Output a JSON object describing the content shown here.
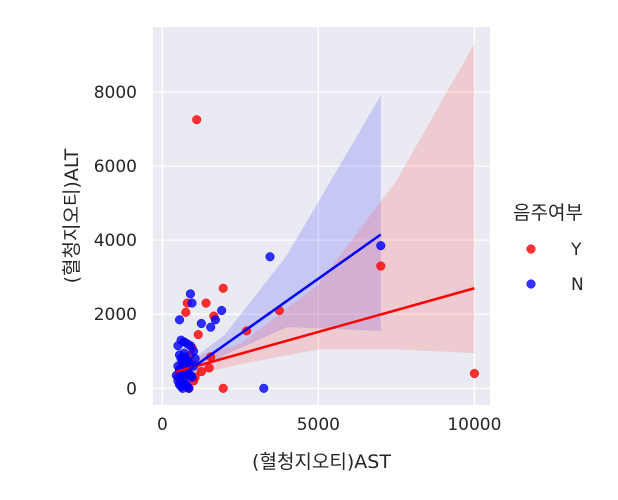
{
  "chart_data": {
    "type": "scatter",
    "xlabel": "(혈청지오티)AST",
    "ylabel": "(혈청지오티)ALT",
    "xlim": [
      -300,
      10500
    ],
    "ylim": [
      -450,
      9750
    ],
    "x_ticks": [
      0,
      5000,
      10000
    ],
    "x_tick_labels": [
      "0",
      "5000",
      "10000"
    ],
    "y_ticks": [
      0,
      2000,
      4000,
      6000,
      8000
    ],
    "y_tick_labels": [
      "0",
      "2000",
      "4000",
      "6000",
      "8000"
    ],
    "grid": true,
    "legend": {
      "title": "음주여부",
      "placement": "right"
    },
    "series": [
      {
        "name": "Y",
        "color": "#ff0000",
        "points": [
          [
            1100,
            7250
          ],
          [
            10000,
            400
          ],
          [
            7000,
            3300
          ],
          [
            3750,
            2100
          ],
          [
            2700,
            1550
          ],
          [
            1950,
            2700
          ],
          [
            1950,
            0
          ],
          [
            1650,
            1950
          ],
          [
            1400,
            2300
          ],
          [
            800,
            2300
          ],
          [
            750,
            2050
          ],
          [
            1150,
            1450
          ],
          [
            1550,
            850
          ],
          [
            1500,
            550
          ],
          [
            1250,
            450
          ],
          [
            1050,
            300
          ],
          [
            900,
            900
          ],
          [
            700,
            1250
          ],
          [
            650,
            650
          ],
          [
            600,
            150
          ],
          [
            850,
            0
          ],
          [
            500,
            300
          ],
          [
            550,
            500
          ],
          [
            950,
            1100
          ],
          [
            1000,
            200
          ]
        ],
        "regression": {
          "x": [
            450,
            10000
          ],
          "y": [
            450,
            2700
          ],
          "ci_upper": [
            [
              450,
              700
            ],
            [
              2500,
              1200
            ],
            [
              5000,
              2800
            ],
            [
              7500,
              5600
            ],
            [
              10000,
              9300
            ]
          ],
          "ci_lower": [
            [
              450,
              250
            ],
            [
              2500,
              650
            ],
            [
              5000,
              1050
            ],
            [
              7500,
              1050
            ],
            [
              10000,
              950
            ]
          ]
        }
      },
      {
        "name": "N",
        "color": "#0000ff",
        "points": [
          [
            7000,
            3850
          ],
          [
            3450,
            3550
          ],
          [
            3250,
            0
          ],
          [
            1900,
            2100
          ],
          [
            1700,
            1850
          ],
          [
            1550,
            1650
          ],
          [
            1250,
            1750
          ],
          [
            900,
            2550
          ],
          [
            950,
            2300
          ],
          [
            550,
            1850
          ],
          [
            600,
            1300
          ],
          [
            700,
            1250
          ],
          [
            800,
            1200
          ],
          [
            900,
            1150
          ],
          [
            1000,
            1000
          ],
          [
            500,
            1150
          ],
          [
            550,
            900
          ],
          [
            600,
            800
          ],
          [
            650,
            700
          ],
          [
            700,
            600
          ],
          [
            750,
            500
          ],
          [
            800,
            450
          ],
          [
            850,
            400
          ],
          [
            900,
            350
          ],
          [
            950,
            300
          ],
          [
            500,
            600
          ],
          [
            550,
            500
          ],
          [
            600,
            400
          ],
          [
            650,
            300
          ],
          [
            700,
            200
          ],
          [
            750,
            100
          ],
          [
            800,
            50
          ],
          [
            850,
            0
          ],
          [
            500,
            200
          ],
          [
            550,
            100
          ],
          [
            600,
            50
          ],
          [
            650,
            0
          ],
          [
            700,
            950
          ],
          [
            750,
            850
          ],
          [
            800,
            750
          ],
          [
            850,
            700
          ],
          [
            900,
            650
          ],
          [
            1000,
            600
          ],
          [
            1050,
            800
          ],
          [
            450,
            350
          ]
        ],
        "regression": {
          "x": [
            450,
            7000
          ],
          "y": [
            250,
            4150
          ],
          "ci_upper": [
            [
              450,
              450
            ],
            [
              2000,
              1450
            ],
            [
              4000,
              3600
            ],
            [
              7000,
              7900
            ]
          ],
          "ci_lower": [
            [
              450,
              50
            ],
            [
              2000,
              900
            ],
            [
              4000,
              1650
            ],
            [
              7000,
              1550
            ]
          ]
        }
      }
    ]
  }
}
